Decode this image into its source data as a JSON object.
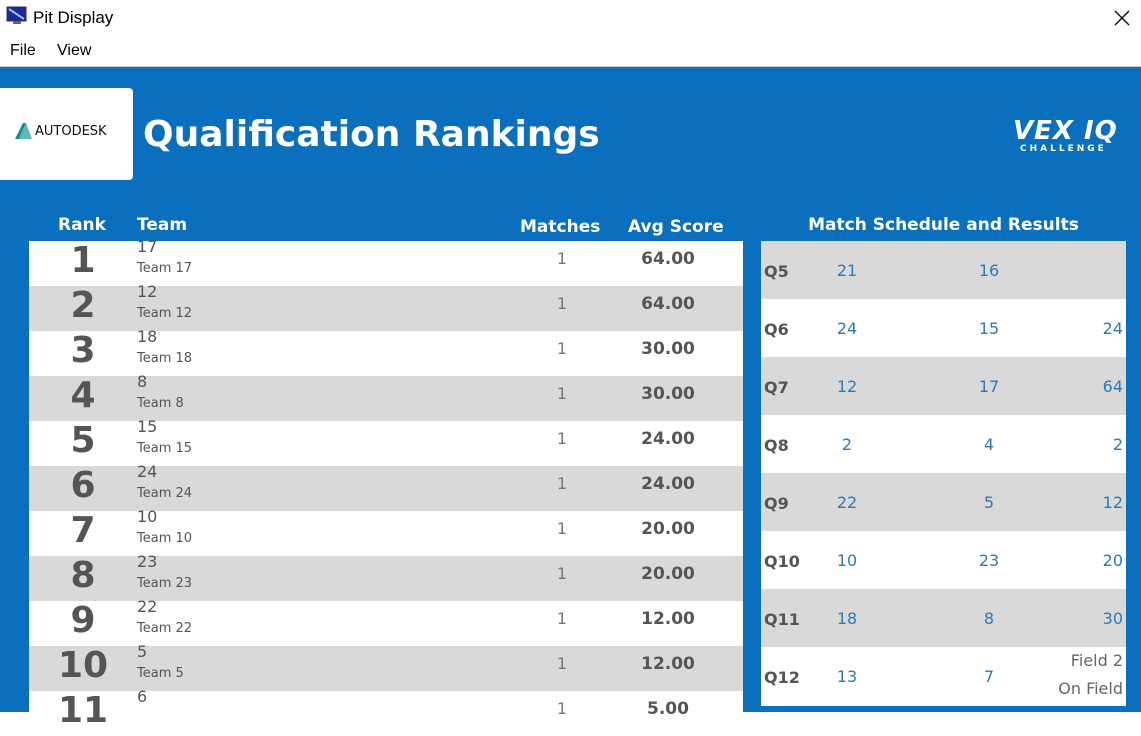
{
  "window": {
    "title": "Pit Display",
    "menu": [
      "File",
      "View"
    ]
  },
  "header": {
    "sponsor": "AUTODESK",
    "title": "Qualification Rankings",
    "logo": "VEX IQ",
    "logo_sub": "CHALLENGE"
  },
  "rankings": {
    "columns": [
      "Rank",
      "Team",
      "Matches",
      "Avg Score"
    ],
    "rows": [
      {
        "rank": "1",
        "team": "17",
        "name": "Team 17",
        "matches": "1",
        "avg": "64.00"
      },
      {
        "rank": "2",
        "team": "12",
        "name": "Team 12",
        "matches": "1",
        "avg": "64.00"
      },
      {
        "rank": "3",
        "team": "18",
        "name": "Team 18",
        "matches": "1",
        "avg": "30.00"
      },
      {
        "rank": "4",
        "team": "8",
        "name": "Team 8",
        "matches": "1",
        "avg": "30.00"
      },
      {
        "rank": "5",
        "team": "15",
        "name": "Team 15",
        "matches": "1",
        "avg": "24.00"
      },
      {
        "rank": "6",
        "team": "24",
        "name": "Team 24",
        "matches": "1",
        "avg": "24.00"
      },
      {
        "rank": "7",
        "team": "10",
        "name": "Team 10",
        "matches": "1",
        "avg": "20.00"
      },
      {
        "rank": "8",
        "team": "23",
        "name": "Team 23",
        "matches": "1",
        "avg": "20.00"
      },
      {
        "rank": "9",
        "team": "22",
        "name": "Team 22",
        "matches": "1",
        "avg": "12.00"
      },
      {
        "rank": "10",
        "team": "5",
        "name": "Team 5",
        "matches": "1",
        "avg": "12.00"
      },
      {
        "rank": "11",
        "team": "6",
        "matches": "1",
        "avg": "5.00"
      }
    ]
  },
  "schedule": {
    "title": "Match Schedule and Results",
    "rows": [
      {
        "match": "Q5",
        "red": "21",
        "blue": "16"
      },
      {
        "match": "Q6",
        "red": "24",
        "blue": "15",
        "score": "24"
      },
      {
        "match": "Q7",
        "red": "12",
        "blue": "17",
        "score": "64"
      },
      {
        "match": "Q8",
        "red": "2",
        "blue": "4",
        "score": "2"
      },
      {
        "match": "Q9",
        "red": "22",
        "blue": "5",
        "score": "12"
      },
      {
        "match": "Q10",
        "red": "10",
        "blue": "23",
        "score": "20"
      },
      {
        "match": "Q11",
        "red": "18",
        "blue": "8",
        "score": "30"
      },
      {
        "match": "Q12",
        "red": "13",
        "blue": "7",
        "status": [
          "Field 2",
          "On Field"
        ]
      }
    ]
  }
}
